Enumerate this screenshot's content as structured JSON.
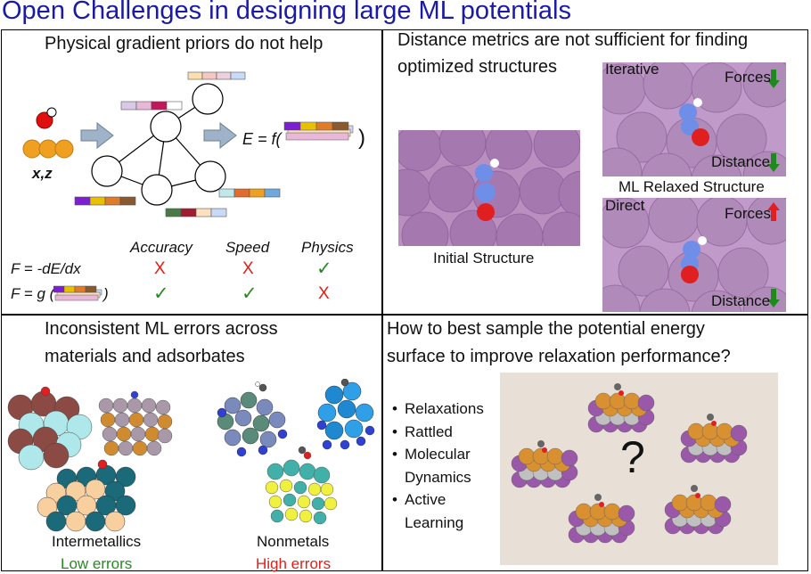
{
  "title": "Open Challenges in designing large ML potentials",
  "q1": {
    "heading": "Physical gradient priors do not help",
    "input_label": "x,z",
    "energy_eq_prefix": "E = f(",
    "energy_eq_suffix": ")",
    "table": {
      "columns": [
        "Accuracy",
        "Speed",
        "Physics"
      ],
      "rows": [
        {
          "label": "F = -dE/dx",
          "marks": [
            "X",
            "X",
            "✓"
          ]
        },
        {
          "label": "F = g (",
          "label_suffix": ")",
          "marks": [
            "✓",
            "✓",
            "X"
          ]
        }
      ]
    }
  },
  "q2": {
    "heading_line1": "Distance metrics are not sufficient for finding",
    "heading_line2": "optimized structures",
    "initial_label": "Initial Structure",
    "iterative_label": "Iterative",
    "direct_label": "Direct",
    "ml_relaxed_label": "ML Relaxed Structure",
    "forces_label": "Forces",
    "distance_label": "Distance"
  },
  "q3": {
    "heading_line1": "Inconsistent ML errors across",
    "heading_line2": "materials and adsorbates",
    "group1_label": "Intermetallics",
    "group1_result": "Low errors",
    "group2_label": "Nonmetals",
    "group2_result": "High errors"
  },
  "q4": {
    "heading_line1": "How to best sample the potential energy",
    "heading_line2": "surface to improve relaxation performance?",
    "bullets": [
      "Relaxations",
      "Rattled",
      "Molecular",
      "Active"
    ],
    "bullet_continuations": [
      "Dynamics",
      "Learning"
    ],
    "question_mark": "?"
  },
  "colors": {
    "title_blue": "#1a1aa6",
    "red": "#e0201a",
    "green": "#2a8a22",
    "slab_purple": "#b98fc0",
    "panel_bg": "#e8e0d6"
  }
}
